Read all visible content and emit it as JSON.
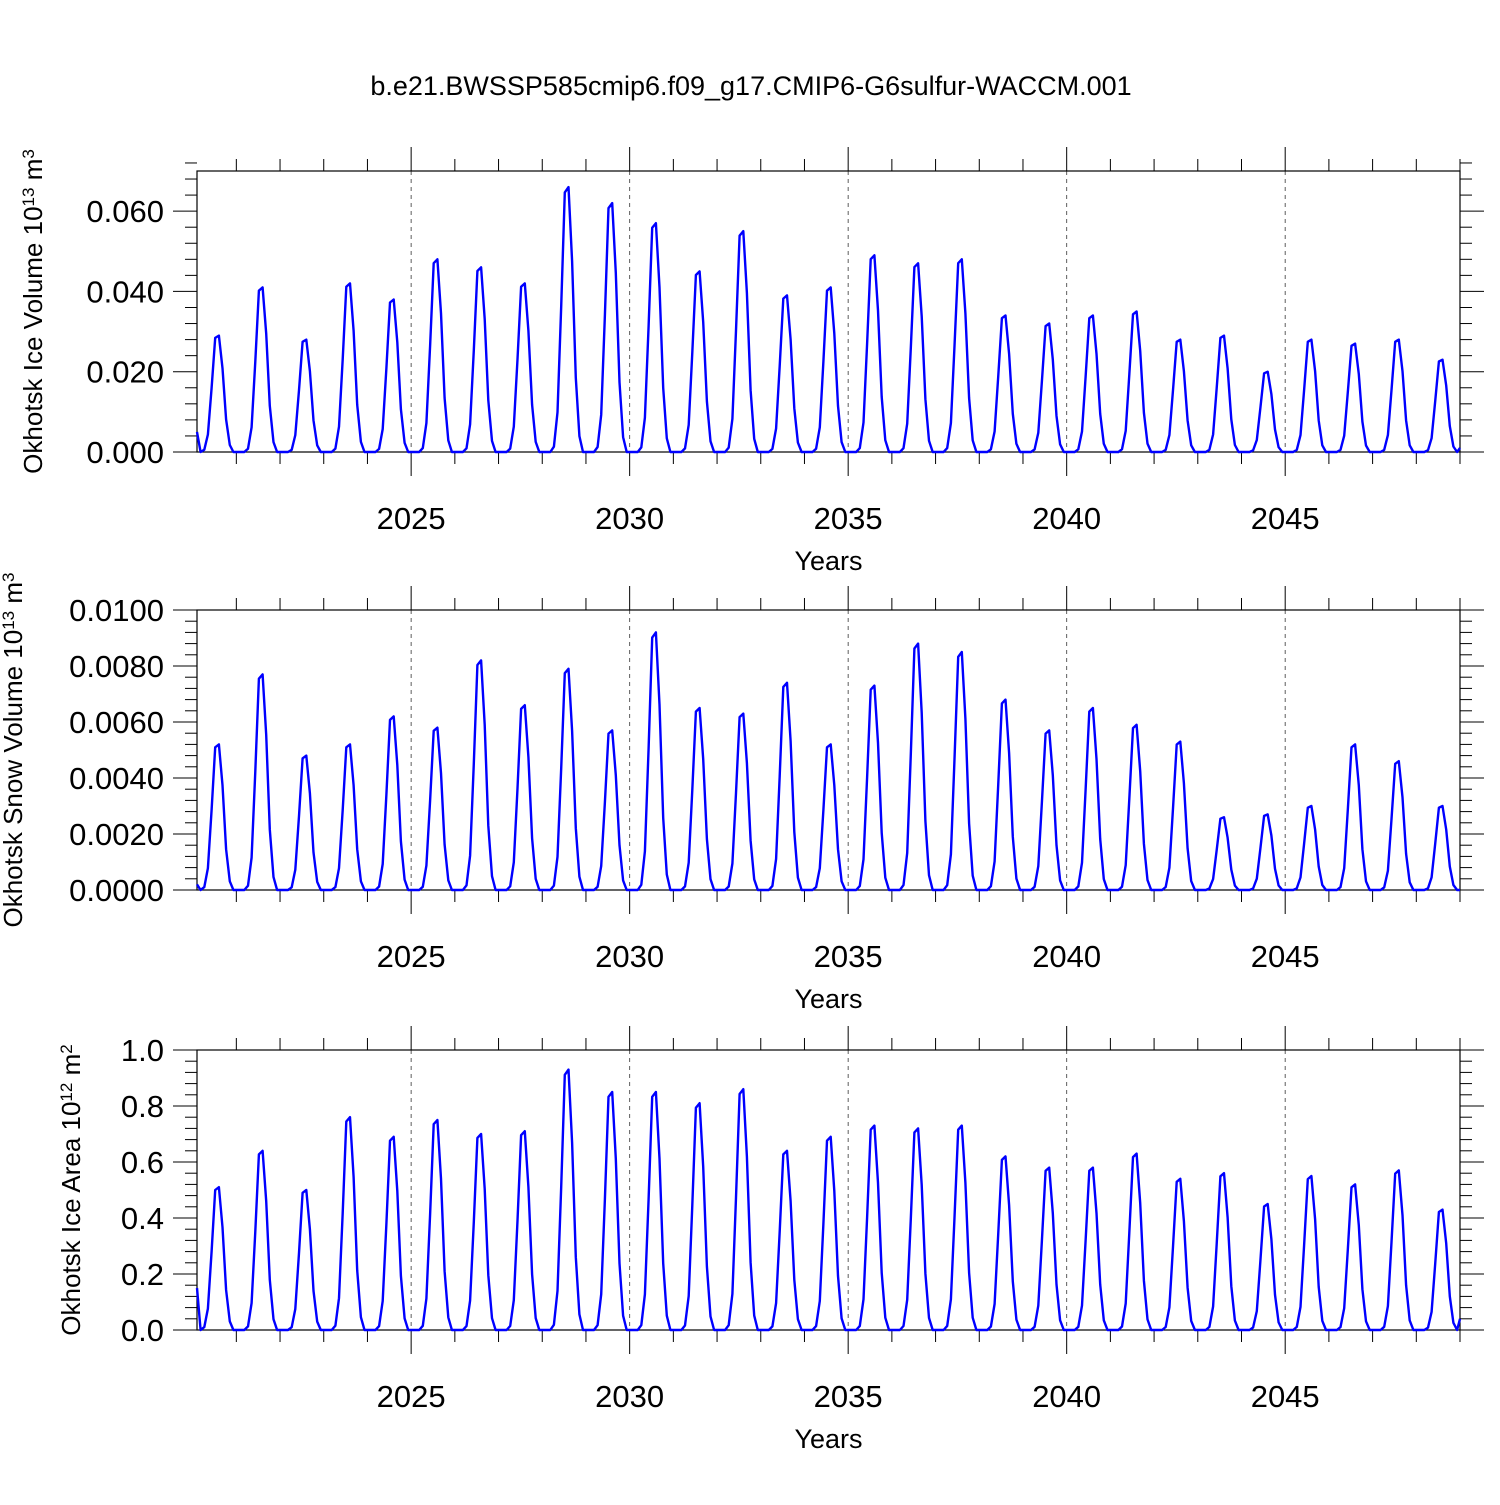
{
  "figure_title": "b.e21.BWSSP585cmip6.f09_g17.CMIP6-G6sulfur-WACCM.001",
  "colors": {
    "series": "#0000ff",
    "axis": "#000000"
  },
  "chart_data": [
    {
      "type": "line",
      "title": "b.e21.BWSSP585cmip6.f09_g17.CMIP6-G6sulfur-WACCM.001",
      "ylabel": "Okhotsk Ice Volume 10",
      "ylabel_exp": "13",
      "ylabel_unit": " m",
      "ylabel_unit_exp": "3",
      "xlabel": "Years",
      "xlim": [
        2020.1,
        2049.0
      ],
      "ylim": [
        0.0,
        0.07
      ],
      "xticks": [
        2025,
        2030,
        2035,
        2040,
        2045
      ],
      "xtick_labels": [
        "2025",
        "2030",
        "2035",
        "2040",
        "2045"
      ],
      "yticks": [
        0.0,
        0.02,
        0.04,
        0.06
      ],
      "ytick_labels": [
        "0.000",
        "0.020",
        "0.040",
        "0.060"
      ],
      "grid_x": true,
      "series": [
        {
          "name": "Okhotsk Ice Volume",
          "start_year": 2020.1,
          "step": 0.0833333,
          "peaks": [
            0.029,
            0.041,
            0.028,
            0.042,
            0.038,
            0.048,
            0.046,
            0.042,
            0.066,
            0.062,
            0.057,
            0.045,
            0.055,
            0.039,
            0.041,
            0.049,
            0.047,
            0.048,
            0.034,
            0.032,
            0.034,
            0.035,
            0.028,
            0.029,
            0.02,
            0.028,
            0.027,
            0.028,
            0.023
          ],
          "first_value": 0.005,
          "last_value": 0.001
        }
      ]
    },
    {
      "type": "line",
      "ylabel": "Okhotsk Snow Volume 10",
      "ylabel_exp": "13",
      "ylabel_unit": " m",
      "ylabel_unit_exp": "3",
      "xlabel": "Years",
      "xlim": [
        2020.1,
        2049.0
      ],
      "ylim": [
        0.0,
        0.01
      ],
      "xticks": [
        2025,
        2030,
        2035,
        2040,
        2045
      ],
      "xtick_labels": [
        "2025",
        "2030",
        "2035",
        "2040",
        "2045"
      ],
      "yticks": [
        0.0,
        0.002,
        0.004,
        0.006,
        0.008,
        0.01
      ],
      "ytick_labels": [
        "0.0000",
        "0.0020",
        "0.0040",
        "0.0060",
        "0.0080",
        "0.0100"
      ],
      "grid_x": true,
      "series": [
        {
          "name": "Okhotsk Snow Volume",
          "start_year": 2020.1,
          "step": 0.0833333,
          "peaks": [
            0.0052,
            0.0077,
            0.0048,
            0.0052,
            0.0062,
            0.0058,
            0.0082,
            0.0066,
            0.0079,
            0.0057,
            0.0092,
            0.0065,
            0.0063,
            0.0074,
            0.0052,
            0.0073,
            0.0088,
            0.0085,
            0.0068,
            0.0057,
            0.0065,
            0.0059,
            0.0053,
            0.0026,
            0.0027,
            0.003,
            0.0052,
            0.0046,
            0.003
          ],
          "first_value": 0.0002,
          "last_value": 0.0
        }
      ]
    },
    {
      "type": "line",
      "ylabel": "Okhotsk Ice Area 10",
      "ylabel_exp": "12",
      "ylabel_unit": " m",
      "ylabel_unit_exp": "2",
      "xlabel": "Years",
      "xlim": [
        2020.1,
        2049.0
      ],
      "ylim": [
        0.0,
        1.0
      ],
      "xticks": [
        2025,
        2030,
        2035,
        2040,
        2045
      ],
      "xtick_labels": [
        "2025",
        "2030",
        "2035",
        "2040",
        "2045"
      ],
      "yticks": [
        0.0,
        0.2,
        0.4,
        0.6,
        0.8,
        1.0
      ],
      "ytick_labels": [
        "0.0",
        "0.2",
        "0.4",
        "0.6",
        "0.8",
        "1.0"
      ],
      "grid_x": true,
      "series": [
        {
          "name": "Okhotsk Ice Area",
          "start_year": 2020.1,
          "step": 0.0833333,
          "peaks": [
            0.51,
            0.64,
            0.5,
            0.76,
            0.69,
            0.75,
            0.7,
            0.71,
            0.93,
            0.85,
            0.85,
            0.81,
            0.86,
            0.64,
            0.69,
            0.73,
            0.72,
            0.73,
            0.62,
            0.58,
            0.58,
            0.63,
            0.54,
            0.56,
            0.45,
            0.55,
            0.52,
            0.57,
            0.43
          ],
          "first_value": 0.15,
          "last_value": 0.04
        }
      ]
    }
  ]
}
